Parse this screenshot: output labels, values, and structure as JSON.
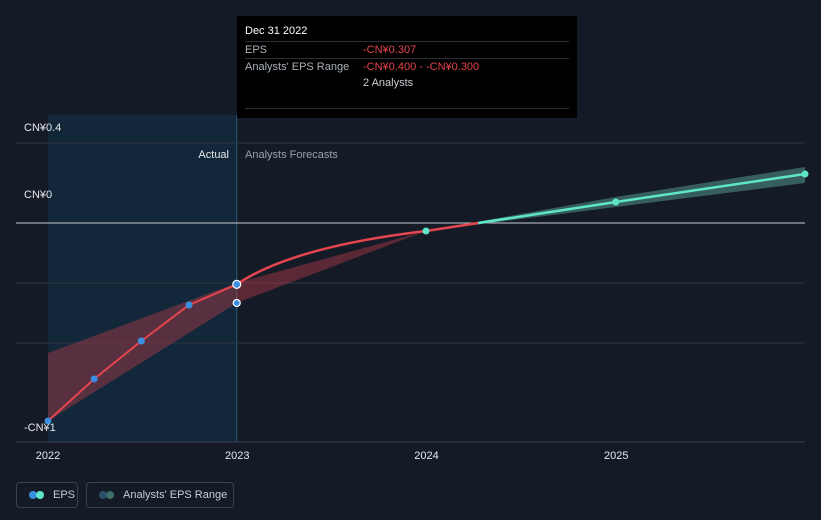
{
  "tooltip": {
    "date": "Dec 31 2022",
    "eps_label": "EPS",
    "eps_value": "-CN¥0.307",
    "range_label": "Analysts' EPS Range",
    "range_value": "-CN¥0.400 - -CN¥0.300",
    "analysts": "2 Analysts"
  },
  "labels": {
    "actual": "Actual",
    "forecast": "Analysts Forecasts"
  },
  "legend": {
    "eps": "EPS",
    "range": "Analysts' EPS Range"
  },
  "colors": {
    "background": "#151b26",
    "eps_actual": "#e5454e",
    "eps_forecast": "#5fe6c8",
    "range_actual": "#b23a4a",
    "range_forecast": "#3f6f6a",
    "actual_shade": "#12283a",
    "point_blue": "#3b8fe0"
  },
  "chart_data": {
    "type": "line",
    "y_tick_labels": [
      "CN¥0.4",
      "CN¥0",
      "-CN¥1"
    ],
    "x_tick_labels": [
      "2022",
      "2023",
      "2024",
      "2025"
    ],
    "ylim": [
      -1.0,
      0.4
    ],
    "x_domain": [
      "2022-01-01",
      "2025-12-31"
    ],
    "grid": true,
    "actual_period": [
      "2022-01-01",
      "2022-12-31"
    ],
    "series": [
      {
        "name": "EPS",
        "actual_points": [
          {
            "x": "2022-01-01",
            "y": -0.99
          },
          {
            "x": "2022-03-31",
            "y": -0.78
          },
          {
            "x": "2022-06-30",
            "y": -0.59
          },
          {
            "x": "2022-09-30",
            "y": -0.41
          },
          {
            "x": "2022-12-31",
            "y": -0.307
          }
        ],
        "forecast_points": [
          {
            "x": "2022-12-31",
            "y": -0.307
          },
          {
            "x": "2023-12-31",
            "y": -0.04
          },
          {
            "x": "2024-12-31",
            "y": 0.105
          },
          {
            "x": "2025-12-31",
            "y": 0.245
          }
        ]
      }
    ],
    "range": {
      "name": "Analysts' EPS Range",
      "actual_band": [
        {
          "x": "2022-01-01",
          "low": -0.99,
          "high": -0.65
        },
        {
          "x": "2022-12-31",
          "low": -0.4,
          "high": -0.3
        }
      ],
      "forecast_band": [
        {
          "x": "2022-12-31",
          "low": -0.4,
          "high": -0.3
        },
        {
          "x": "2023-12-31",
          "low": -0.04,
          "high": -0.04
        },
        {
          "x": "2024-12-31",
          "low": 0.08,
          "high": 0.13
        },
        {
          "x": "2025-12-31",
          "low": 0.2,
          "high": 0.28
        }
      ],
      "marker_2022": {
        "x": "2022-12-31",
        "y": -0.4
      }
    }
  }
}
